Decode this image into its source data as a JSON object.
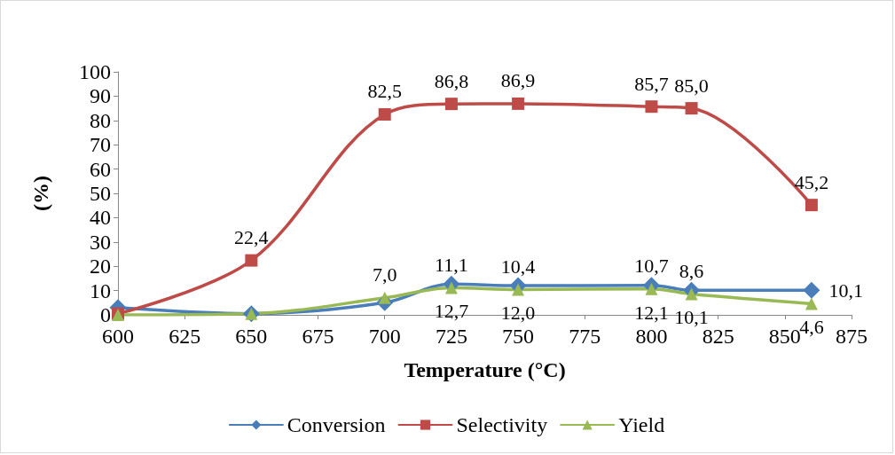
{
  "chart_data": {
    "type": "line",
    "xlabel": "Temperature (°C)",
    "ylabel": "(%)",
    "x": [
      600,
      650,
      700,
      725,
      750,
      800,
      815,
      860
    ],
    "series": [
      {
        "name": "Conversion",
        "color": "#4a7ebb",
        "marker": "diamond",
        "values": [
          3,
          0.5,
          5,
          12.7,
          12.0,
          12.1,
          10.1,
          10.1
        ],
        "value_labels": [
          null,
          null,
          null,
          "12,7",
          "12,0",
          "12,1",
          "10,1",
          "10,1"
        ]
      },
      {
        "name": "Selectivity",
        "color": "#be4b48",
        "marker": "square",
        "values": [
          0.5,
          22.4,
          82.5,
          86.8,
          86.9,
          85.7,
          85.0,
          45.2
        ],
        "value_labels": [
          null,
          "22,4",
          "82,5",
          "86,8",
          "86,9",
          "85,7",
          "85,0",
          "45,2"
        ]
      },
      {
        "name": "Yield",
        "color": "#98b954",
        "marker": "triangle",
        "values": [
          0,
          0.5,
          7.0,
          11.1,
          10.4,
          10.7,
          8.6,
          4.6
        ],
        "value_labels": [
          null,
          null,
          "7,0",
          "11,1",
          "10,4",
          "10,7",
          "8,6",
          "4,6"
        ]
      }
    ],
    "xlim": [
      600,
      875
    ],
    "xticks": [
      600,
      625,
      650,
      675,
      700,
      725,
      750,
      775,
      800,
      825,
      850,
      875
    ],
    "ylim": [
      0,
      100
    ],
    "yticks": [
      0,
      10,
      20,
      30,
      40,
      50,
      60,
      70,
      80,
      90,
      100
    ],
    "grid": false,
    "legend": "bottom"
  }
}
